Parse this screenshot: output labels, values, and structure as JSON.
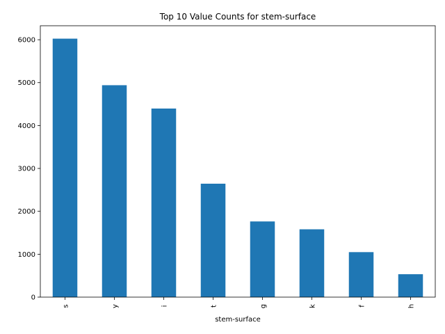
{
  "chart_data": {
    "type": "bar",
    "title": "Top 10 Value Counts for stem-surface",
    "xlabel": "stem-surface",
    "ylabel": "",
    "categories": [
      "s",
      "y",
      "i",
      "t",
      "g",
      "k",
      "f",
      "h"
    ],
    "values": [
      6025,
      4940,
      4396,
      2644,
      1764,
      1581,
      1049,
      534
    ],
    "ylim": [
      0,
      6326
    ],
    "yticks": [
      0,
      1000,
      2000,
      3000,
      4000,
      5000,
      6000
    ],
    "bar_color": "#1f77b4",
    "grid": false,
    "legend": "none"
  }
}
